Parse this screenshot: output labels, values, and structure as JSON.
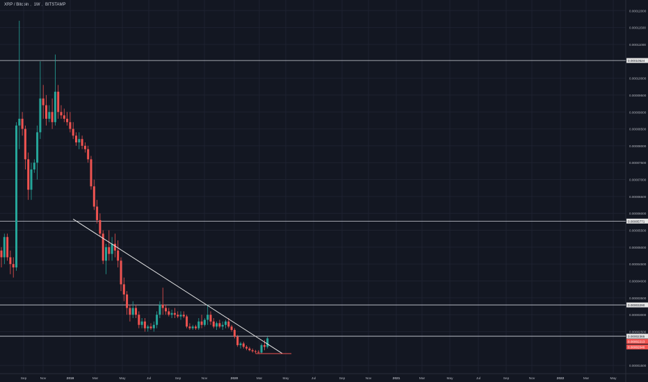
{
  "header": {
    "symbol": "XRP / Bitcoin",
    "interval": "1W",
    "exchange": "BITSTAMP"
  },
  "colors": {
    "background": "#131722",
    "up": "#26a69a",
    "down": "#ef5350",
    "grid": "#1e2230",
    "axis_text": "#b2b5be",
    "horizontal_lines": "#d1d4dc",
    "trendline": "#e8e8e8",
    "support_line": "#ef5350"
  },
  "chart_data": {
    "type": "candlestick",
    "title": "XRP / Bitcoin, 1W, BITSTAMP",
    "y_axis_position": "right",
    "ylim": [
      1.4e-05,
      0.0001215
    ],
    "y_ticks": [
      "0.00012000",
      "0.00011500",
      "0.00011000",
      "0.00010000",
      "0.00009500",
      "0.00009000",
      "0.00008500",
      "0.00008000",
      "0.00007500",
      "0.00007000",
      "0.00006500",
      "0.00006000",
      "0.00005500",
      "0.00005000",
      "0.00004500",
      "0.00004000",
      "0.00003500",
      "0.00003000",
      "0.00002500",
      "0.00001500"
    ],
    "x_ticks": [
      "Sep",
      "Nov",
      "2019",
      "Mar",
      "May",
      "Jul",
      "Sep",
      "Nov",
      "2020",
      "Mar",
      "May",
      "Jul",
      "Sep",
      "Nov",
      "2021",
      "Mar",
      "May",
      "Jul",
      "Sep",
      "Nov",
      "2022",
      "Mar",
      "May"
    ],
    "horizontal_levels": [
      {
        "value": 0.00010524,
        "label": "0.00010524"
      },
      {
        "value": 5.771e-05,
        "label": "0.00005771"
      },
      {
        "value": 3.29e-05,
        "label": "0.00003290"
      },
      {
        "value": 2.365e-05,
        "label": "0.00002365"
      }
    ],
    "price_tags": [
      {
        "value": 2.213e-05,
        "label": "0.00002213"
      },
      {
        "value": 2.046e-05,
        "label": "0.00002046"
      }
    ],
    "trendline": {
      "from": [
        25,
        5.83e-05
      ],
      "to": [
        95,
        1.85e-05
      ]
    },
    "support_line": {
      "from": [
        86,
        1.85e-05
      ],
      "to": [
        98,
        1.85e-05
      ]
    },
    "candles_start_week": 0,
    "candles": [
      [
        5.8e-05,
        5.8e-05,
        4.7e-05,
        4.9e-05
      ],
      [
        4.9e-05,
        5e-05,
        4.4e-05,
        4.7e-05
      ],
      [
        4.7e-05,
        5.4e-05,
        4.5e-05,
        5.3e-05
      ],
      [
        5.3e-05,
        5.4e-05,
        4.6e-05,
        4.7e-05
      ],
      [
        4.7e-05,
        4.9e-05,
        4.2e-05,
        4.5e-05
      ],
      [
        4.5e-05,
        4.7e-05,
        4.1e-05,
        4.4e-05
      ],
      [
        4.4e-05,
        8.7e-05,
        4.3e-05,
        8.6e-05
      ],
      [
        8.6e-05,
        0.000117,
        7.9e-05,
        8.8e-05
      ],
      [
        8.8e-05,
        9e-05,
        8.3e-05,
        8.5e-05
      ],
      [
        8.5e-05,
        8.6e-05,
        7.3e-05,
        7.6e-05
      ],
      [
        7.6e-05,
        7.8e-05,
        6.4e-05,
        6.7e-05
      ],
      [
        6.7e-05,
        7.5e-05,
        6.4e-05,
        7.3e-05
      ],
      [
        7.3e-05,
        7.6e-05,
        7.2e-05,
        7.5e-05
      ],
      [
        7.5e-05,
        8.6e-05,
        7e-05,
        8.4e-05
      ],
      [
        8.4e-05,
        0.000105,
        8.2e-05,
        9.4e-05
      ],
      [
        9.4e-05,
        9.8e-05,
        8.8e-05,
        9.2e-05
      ],
      [
        9.2e-05,
        9.5e-05,
        8.6e-05,
        8.8e-05
      ],
      [
        8.8e-05,
        9.2e-05,
        8.7e-05,
        9e-05
      ],
      [
        9e-05,
        9.4e-05,
        8.5e-05,
        8.7e-05
      ],
      [
        8.7e-05,
        0.000107,
        8.6e-05,
        9.6e-05
      ],
      [
        9.6e-05,
        9.8e-05,
        8.8e-05,
        9e-05
      ],
      [
        9e-05,
        9.2e-05,
        8.8e-05,
        8.9e-05
      ],
      [
        8.9e-05,
        9.1e-05,
        8.7e-05,
        8.8e-05
      ],
      [
        8.8e-05,
        9e-05,
        8.6e-05,
        8.7e-05
      ],
      [
        8.7e-05,
        9e-05,
        8.4e-05,
        8.5e-05
      ],
      [
        8.5e-05,
        8.7e-05,
        8.2e-05,
        8.3e-05
      ],
      [
        8.3e-05,
        8.4e-05,
        8e-05,
        8.1e-05
      ],
      [
        8.1e-05,
        8.4e-05,
        7.9e-05,
        8.2e-05
      ],
      [
        8.2e-05,
        8.3e-05,
        7.9e-05,
        8e-05
      ],
      [
        8e-05,
        8.1e-05,
        7.8e-05,
        7.9e-05
      ],
      [
        7.9e-05,
        8e-05,
        7.5e-05,
        7.6e-05
      ],
      [
        7.6e-05,
        7.7e-05,
        6.7e-05,
        6.8e-05
      ],
      [
        6.8e-05,
        7e-05,
        6.1e-05,
        6.2e-05
      ],
      [
        6.2e-05,
        6.4e-05,
        5.7e-05,
        5.8e-05
      ],
      [
        5.8e-05,
        6e-05,
        5.3e-05,
        5.4e-05
      ],
      [
        5.4e-05,
        5.5e-05,
        4.5e-05,
        4.6e-05
      ],
      [
        4.6e-05,
        5.1e-05,
        4.2e-05,
        5e-05
      ],
      [
        5e-05,
        5.5e-05,
        4.6e-05,
        4.8e-05
      ],
      [
        4.8e-05,
        5.3e-05,
        4.6e-05,
        5.1e-05
      ],
      [
        5.1e-05,
        5.4e-05,
        4.7e-05,
        4.9e-05
      ],
      [
        4.9e-05,
        5.2e-05,
        4.4e-05,
        4.6e-05
      ],
      [
        4.6e-05,
        4.7e-05,
        3.7e-05,
        3.9e-05
      ],
      [
        3.9e-05,
        4.1e-05,
        3.4e-05,
        3.6e-05
      ],
      [
        3.6e-05,
        3.7e-05,
        3e-05,
        3.2e-05
      ],
      [
        3.2e-05,
        3.3e-05,
        2.8e-05,
        3e-05
      ],
      [
        3e-05,
        3.4e-05,
        2.9e-05,
        3.2e-05
      ],
      [
        3.2e-05,
        3.3e-05,
        2.9e-05,
        3e-05
      ],
      [
        3e-05,
        3.1e-05,
        2.6e-05,
        2.7e-05
      ],
      [
        2.7e-05,
        2.9e-05,
        2.6e-05,
        2.8e-05
      ],
      [
        2.8e-05,
        2.9e-05,
        2.5e-05,
        2.6e-05
      ],
      [
        2.6e-05,
        2.7e-05,
        2.5e-05,
        2.65e-05
      ],
      [
        2.65e-05,
        2.75e-05,
        2.55e-05,
        2.6e-05
      ],
      [
        2.6e-05,
        2.8e-05,
        2.5e-05,
        2.7e-05
      ],
      [
        2.7e-05,
        3.1e-05,
        2.6e-05,
        3e-05
      ],
      [
        3e-05,
        3.4e-05,
        2.9e-05,
        3.3e-05
      ],
      [
        3.3e-05,
        3.8e-05,
        3e-05,
        3.2e-05
      ],
      [
        3.2e-05,
        3.3e-05,
        3e-05,
        3.1e-05
      ],
      [
        3.1e-05,
        3.2e-05,
        2.95e-05,
        3e-05
      ],
      [
        3e-05,
        3.15e-05,
        2.9e-05,
        3.05e-05
      ],
      [
        3.05e-05,
        3.2e-05,
        2.9e-05,
        3e-05
      ],
      [
        3e-05,
        3.1e-05,
        2.9e-05,
        2.95e-05
      ],
      [
        2.95e-05,
        3.1e-05,
        2.85e-05,
        3e-05
      ],
      [
        3e-05,
        3.1e-05,
        2.9e-05,
        2.95e-05
      ],
      [
        2.95e-05,
        3e-05,
        2.6e-05,
        2.65e-05
      ],
      [
        2.65e-05,
        2.75e-05,
        2.55e-05,
        2.6e-05
      ],
      [
        2.6e-05,
        2.7e-05,
        2.55e-05,
        2.65e-05
      ],
      [
        2.65e-05,
        2.7e-05,
        2.55e-05,
        2.6e-05
      ],
      [
        2.6e-05,
        2.9e-05,
        2.55e-05,
        2.8e-05
      ],
      [
        2.8e-05,
        3e-05,
        2.6e-05,
        2.7e-05
      ],
      [
        2.7e-05,
        2.9e-05,
        2.65e-05,
        2.85e-05
      ],
      [
        2.85e-05,
        3.3e-05,
        2.7e-05,
        3e-05
      ],
      [
        3e-05,
        3.1e-05,
        2.7e-05,
        2.8e-05
      ],
      [
        2.8e-05,
        2.9e-05,
        2.6e-05,
        2.65e-05
      ],
      [
        2.65e-05,
        2.8e-05,
        2.55e-05,
        2.75e-05
      ],
      [
        2.75e-05,
        2.85e-05,
        2.6e-05,
        2.65e-05
      ],
      [
        2.65e-05,
        2.8e-05,
        2.55e-05,
        2.7e-05
      ],
      [
        2.7e-05,
        2.85e-05,
        2.6e-05,
        2.8e-05
      ],
      [
        2.8e-05,
        2.9e-05,
        2.6e-05,
        2.65e-05
      ],
      [
        2.65e-05,
        2.7e-05,
        2.5e-05,
        2.55e-05
      ],
      [
        2.55e-05,
        2.6e-05,
        2.3e-05,
        2.35e-05
      ],
      [
        2.35e-05,
        2.4e-05,
        2.05e-05,
        2.1e-05
      ],
      [
        2.1e-05,
        2.2e-05,
        2e-05,
        2.15e-05
      ],
      [
        2.15e-05,
        2.2e-05,
        2e-05,
        2.05e-05
      ],
      [
        2.05e-05,
        2.1e-05,
        1.95e-05,
        2e-05
      ],
      [
        2e-05,
        2.05e-05,
        1.92e-05,
        1.95e-05
      ],
      [
        1.95e-05,
        2e-05,
        1.88e-05,
        1.92e-05
      ],
      [
        1.92e-05,
        1.96e-05,
        1.86e-05,
        1.9e-05
      ],
      [
        1.9e-05,
        1.95e-05,
        1.85e-05,
        1.88e-05
      ],
      [
        1.88e-05,
        2.15e-05,
        1.85e-05,
        2.1e-05
      ],
      [
        2.1e-05,
        2.25e-05,
        1.95e-05,
        2.05e-05
      ],
      [
        2.05e-05,
        2.35e-05,
        2e-05,
        2.3e-05
      ]
    ]
  }
}
